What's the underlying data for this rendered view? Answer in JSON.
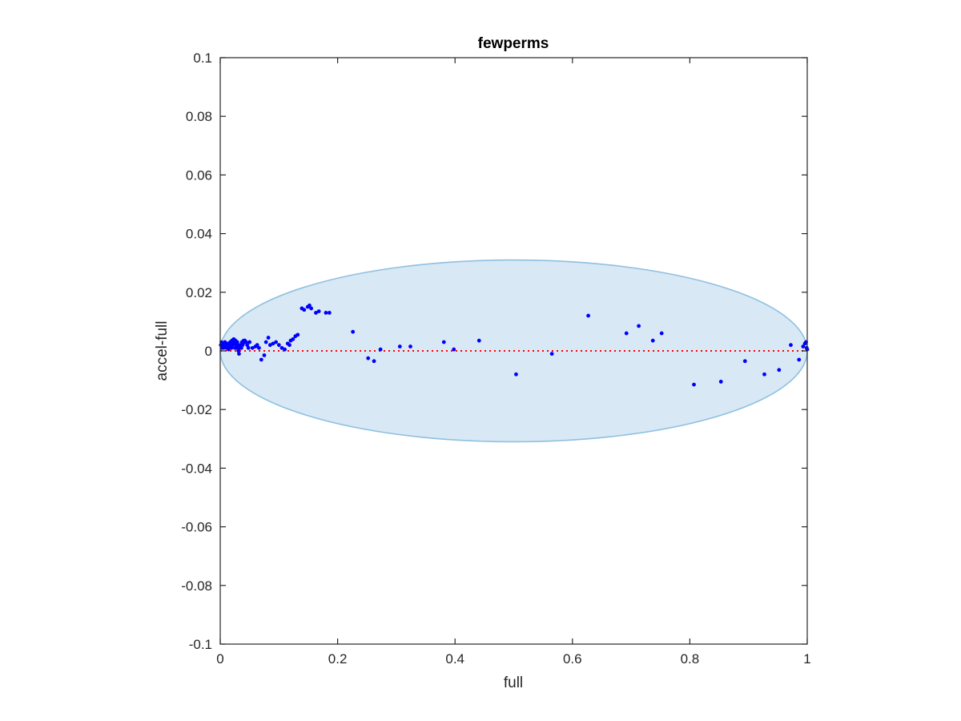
{
  "chart_data": {
    "type": "scatter",
    "title": "fewperms",
    "xlabel": "full",
    "ylabel": "accel-full",
    "xlim": [
      0,
      1
    ],
    "ylim": [
      -0.1,
      0.1
    ],
    "xticks": [
      0,
      0.2,
      0.4,
      0.6,
      0.8,
      1
    ],
    "xtick_labels": [
      "0",
      "0.2",
      "0.4",
      "0.6",
      "0.8",
      "1"
    ],
    "yticks": [
      -0.1,
      -0.08,
      -0.06,
      -0.04,
      -0.02,
      0,
      0.02,
      0.04,
      0.06,
      0.08,
      0.1
    ],
    "ytick_labels": [
      "-0.1",
      "-0.08",
      "-0.06",
      "-0.04",
      "-0.02",
      "0",
      "0.02",
      "0.04",
      "0.06",
      "0.08",
      "0.1"
    ],
    "grid": false,
    "colors": {
      "points": "#0000ff",
      "reference_line": "#ff0000",
      "ellipse_fill": "#d8e8f4",
      "ellipse_edge": "#8ec0e0",
      "axes": "#262626"
    },
    "reference_line": {
      "y": 0,
      "style": "dotted"
    },
    "ellipse": {
      "cx": 0.5,
      "cy": 0,
      "rx": 0.5,
      "ry": 0.031
    },
    "series": [
      {
        "x": [
          0.001,
          0.002,
          0.003,
          0.004,
          0.005,
          0.006,
          0.007,
          0.008,
          0.009,
          0.01,
          0.011,
          0.012,
          0.013,
          0.014,
          0.015,
          0.016,
          0.017,
          0.018,
          0.019,
          0.02,
          0.021,
          0.022,
          0.023,
          0.024,
          0.025,
          0.026,
          0.027,
          0.028,
          0.029,
          0.03,
          0.031,
          0.032,
          0.033,
          0.034,
          0.035,
          0.036,
          0.037,
          0.038,
          0.039,
          0.04,
          0.042,
          0.044,
          0.046,
          0.048,
          0.05,
          0.055,
          0.06,
          0.063,
          0.066,
          0.07,
          0.075,
          0.078,
          0.082,
          0.085,
          0.09,
          0.095,
          0.1,
          0.105,
          0.11,
          0.115,
          0.118,
          0.12,
          0.124,
          0.128,
          0.132,
          0.139,
          0.143,
          0.149,
          0.152,
          0.155,
          0.163,
          0.168,
          0.18,
          0.186,
          0.226,
          0.252,
          0.262,
          0.273,
          0.306,
          0.324,
          0.381,
          0.398,
          0.441,
          0.504,
          0.565,
          0.627,
          0.692,
          0.713,
          0.737,
          0.752,
          0.807,
          0.853,
          0.894,
          0.927,
          0.952,
          0.972,
          0.986,
          0.993,
          0.996,
          0.998,
          0.999,
          1.0
        ],
        "y": [
          0.002,
          0.003,
          0.001,
          0.002,
          0.0025,
          0.001,
          0.002,
          0.003,
          0.0015,
          0.002,
          0.001,
          0.0025,
          0.002,
          0.0005,
          0.002,
          0.0015,
          0.003,
          0.002,
          0.001,
          0.0035,
          0.002,
          0.003,
          0.004,
          0.0025,
          0.001,
          0.0035,
          0.002,
          0.001,
          0.003,
          0.002,
          0.0,
          -0.001,
          0.001,
          0.002,
          0.0015,
          0.001,
          0.003,
          0.002,
          0.0025,
          0.0035,
          0.0035,
          0.003,
          0.002,
          0.001,
          0.003,
          0.001,
          0.0015,
          0.002,
          0.001,
          -0.003,
          -0.0015,
          0.003,
          0.0045,
          0.002,
          0.0025,
          0.003,
          0.002,
          0.001,
          0.0005,
          0.0025,
          0.002,
          0.0035,
          0.004,
          0.005,
          0.0055,
          0.0145,
          0.014,
          0.015,
          0.0155,
          0.0145,
          0.013,
          0.0135,
          0.013,
          0.013,
          0.0065,
          -0.0025,
          -0.0035,
          0.0005,
          0.0015,
          0.0015,
          0.003,
          0.0005,
          0.0035,
          -0.008,
          -0.001,
          0.012,
          0.006,
          0.0085,
          0.0035,
          0.006,
          -0.0115,
          -0.0105,
          -0.0035,
          -0.008,
          -0.0065,
          0.002,
          -0.003,
          0.0015,
          0.0025,
          0.003,
          0.001,
          0.0005
        ]
      }
    ]
  }
}
